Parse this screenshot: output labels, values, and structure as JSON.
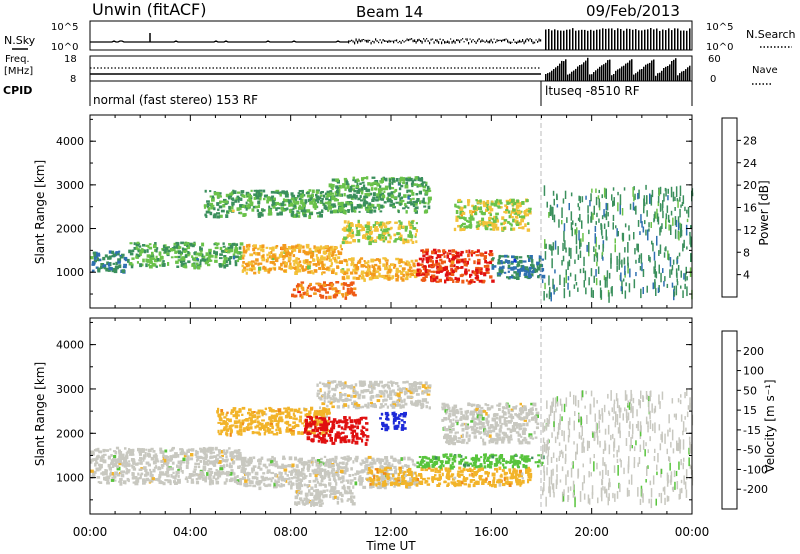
{
  "header": {
    "station": "Unwin (fitACF)",
    "beam": "Beam 14",
    "date": "09/Feb/2013"
  },
  "params": {
    "nsky_label": "N.Sky",
    "nsearch_label": "N.Search",
    "noise_ticks": [
      "10^5",
      "10^0"
    ],
    "freq_label": "Freq.",
    "freq_unit": "[MHz]",
    "freq_ticks": [
      "18",
      "8"
    ],
    "nave_label": "Nave",
    "nave_ticks": [
      "60",
      "0"
    ],
    "cpid_label": "CPID",
    "cpid_1": "normal (fast stereo) 153 RF",
    "cpid_2": "ltuseq -8510 RF"
  },
  "axes": {
    "ylabel": "Slant Range [km]",
    "xlabel": "Time UT",
    "yticks": [
      "1000",
      "2000",
      "3000",
      "4000"
    ],
    "xticks": [
      "00:00",
      "04:00",
      "08:00",
      "12:00",
      "16:00",
      "20:00",
      "00:00"
    ]
  },
  "colorbars": {
    "power": {
      "label": "Power [dB]",
      "ticks": [
        "4",
        "8",
        "12",
        "16",
        "20",
        "24",
        "28"
      ],
      "colors": [
        "#0b2fd8",
        "#2e6fb0",
        "#3a8f5c",
        "#6ac24a",
        "#f3c23a",
        "#f39a1c",
        "#ee5a16",
        "#e01010"
      ]
    },
    "velocity": {
      "label": "Velocity [m s⁻¹]",
      "ticks": [
        "200",
        "100",
        "50",
        "15",
        "-15",
        "-50",
        "-100",
        "-200"
      ],
      "colors": [
        "#1d2ad8",
        "#2c6c95",
        "#3c8f5a",
        "#58c43c",
        "#c8c8c0",
        "#f2b42a",
        "#f08a18",
        "#e85a18",
        "#e01010"
      ]
    }
  },
  "chart_data": [
    {
      "type": "heatmap",
      "title": "Power",
      "xlabel": "Time UT",
      "ylabel": "Slant Range [km]",
      "xlim": [
        "00:00",
        "24:00"
      ],
      "ylim": [
        180,
        4600
      ],
      "colorbar": "Power [dB]",
      "clim": [
        0,
        32
      ],
      "features": [
        {
          "t0": 0.0,
          "t1": 1.5,
          "r0": 1050,
          "r1": 1500,
          "value": 8
        },
        {
          "t0": 1.5,
          "t1": 6.0,
          "r0": 1150,
          "r1": 1700,
          "value": 12
        },
        {
          "t0": 6.0,
          "t1": 10.0,
          "r0": 1000,
          "r1": 1650,
          "value": 20
        },
        {
          "t0": 10.0,
          "t1": 13.0,
          "r0": 850,
          "r1": 1350,
          "value": 20
        },
        {
          "t0": 13.0,
          "t1": 16.0,
          "r0": 800,
          "r1": 1550,
          "value": 28
        },
        {
          "t0": 16.0,
          "t1": 18.0,
          "r0": 900,
          "r1": 1400,
          "value": 8
        },
        {
          "t0": 4.5,
          "t1": 9.5,
          "r0": 2300,
          "r1": 2900,
          "value": 12
        },
        {
          "t0": 9.5,
          "t1": 13.5,
          "r0": 2400,
          "r1": 3200,
          "value": 12
        },
        {
          "t0": 10.0,
          "t1": 13.0,
          "r0": 1700,
          "r1": 2200,
          "value": 16
        },
        {
          "t0": 14.5,
          "t1": 17.5,
          "r0": 2000,
          "r1": 2700,
          "value": 16
        },
        {
          "t0": 8.0,
          "t1": 10.5,
          "r0": 450,
          "r1": 800,
          "value": 24
        },
        {
          "t0": 18.0,
          "t1": 24.0,
          "r0": 500,
          "r1": 3000,
          "value": 10
        }
      ]
    },
    {
      "type": "heatmap",
      "title": "Velocity",
      "xlabel": "Time UT",
      "ylabel": "Slant Range [km]",
      "xlim": [
        "00:00",
        "24:00"
      ],
      "ylim": [
        180,
        4600
      ],
      "colorbar": "Velocity [m s-1]",
      "clim": [
        -200,
        200
      ],
      "features": [
        {
          "t0": 0.0,
          "t1": 6.0,
          "r0": 900,
          "r1": 1700,
          "value": 0
        },
        {
          "t0": 6.0,
          "t1": 13.0,
          "r0": 800,
          "r1": 1500,
          "value": 0
        },
        {
          "t0": 11.0,
          "t1": 17.5,
          "r0": 850,
          "r1": 1250,
          "value": -50
        },
        {
          "t0": 13.0,
          "t1": 18.0,
          "r0": 1250,
          "r1": 1550,
          "value": 50
        },
        {
          "t0": 5.0,
          "t1": 9.5,
          "r0": 2000,
          "r1": 2600,
          "value": -50
        },
        {
          "t0": 8.5,
          "t1": 11.0,
          "r0": 1800,
          "r1": 2400,
          "value": -200
        },
        {
          "t0": 11.5,
          "t1": 12.5,
          "r0": 2100,
          "r1": 2500,
          "value": 200
        },
        {
          "t0": 9.0,
          "t1": 13.5,
          "r0": 2600,
          "r1": 3200,
          "value": -15
        },
        {
          "t0": 14.0,
          "t1": 17.8,
          "r0": 1800,
          "r1": 2700,
          "value": 0
        },
        {
          "t0": 8.0,
          "t1": 10.5,
          "r0": 400,
          "r1": 750,
          "value": 0
        },
        {
          "t0": 18.0,
          "t1": 24.0,
          "r0": 500,
          "r1": 3000,
          "value": 15
        }
      ]
    }
  ]
}
